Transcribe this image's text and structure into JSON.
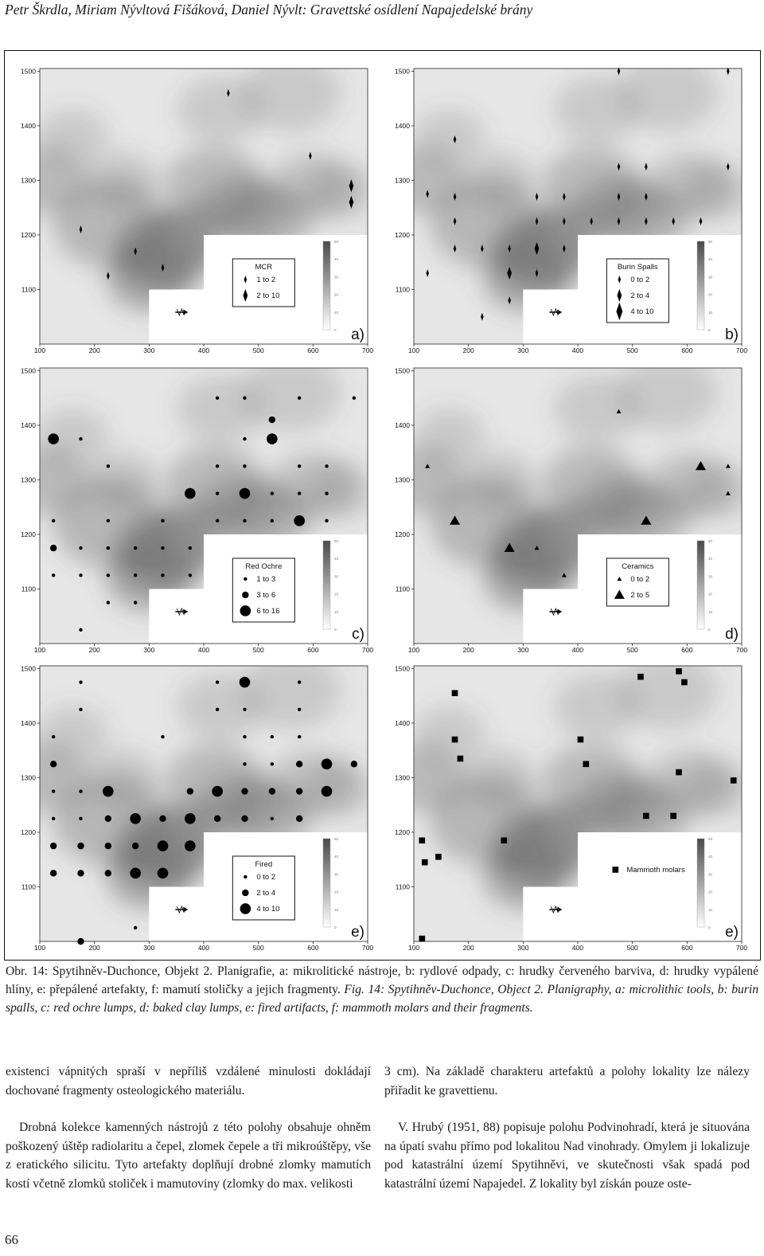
{
  "header": "Petr Škrdla, Miriam Nývltová Fišáková, Daniel Nývlt: Gravettské osídlení Napajedelské brány",
  "panels": [
    {
      "letter": "a)",
      "legend_title": "MCR",
      "marker": "diamond",
      "legend": [
        {
          "label": "1  to  2",
          "size": 1
        },
        {
          "label": "2  to  10",
          "size": 2
        }
      ],
      "points": [
        [
          175,
          1210,
          1
        ],
        [
          275,
          1170,
          1
        ],
        [
          325,
          1140,
          1
        ],
        [
          225,
          1125,
          1
        ],
        [
          445,
          1460,
          1
        ],
        [
          595,
          1345,
          1
        ],
        [
          670,
          1290,
          2
        ],
        [
          670,
          1260,
          2
        ]
      ]
    },
    {
      "letter": "b)",
      "legend_title": "Burin Spalls",
      "marker": "diamond",
      "legend": [
        {
          "label": "0  to  2",
          "size": 1
        },
        {
          "label": "2  to  4",
          "size": 2
        },
        {
          "label": "4  to  10",
          "size": 3
        }
      ],
      "points": [
        [
          125,
          1130,
          1
        ],
        [
          175,
          1175,
          1
        ],
        [
          175,
          1225,
          1
        ],
        [
          175,
          1270,
          1
        ],
        [
          225,
          1175,
          1
        ],
        [
          275,
          1130,
          2
        ],
        [
          275,
          1080,
          1
        ],
        [
          275,
          1175,
          1
        ],
        [
          325,
          1270,
          1
        ],
        [
          325,
          1225,
          1
        ],
        [
          325,
          1175,
          2
        ],
        [
          325,
          1130,
          1
        ],
        [
          375,
          1175,
          1
        ],
        [
          375,
          1225,
          1
        ],
        [
          375,
          1270,
          1
        ],
        [
          425,
          1225,
          1
        ],
        [
          475,
          1225,
          1
        ],
        [
          475,
          1270,
          1
        ],
        [
          475,
          1325,
          1
        ],
        [
          525,
          1325,
          1
        ],
        [
          525,
          1270,
          1
        ],
        [
          525,
          1225,
          1
        ],
        [
          575,
          1225,
          1
        ],
        [
          625,
          1225,
          1
        ],
        [
          675,
          1325,
          1
        ],
        [
          475,
          1500,
          1
        ],
        [
          675,
          1500,
          1
        ],
        [
          175,
          1375,
          1
        ],
        [
          125,
          1275,
          1
        ],
        [
          225,
          1050,
          1
        ]
      ]
    },
    {
      "letter": "c)",
      "legend_title": "Red Ochre",
      "marker": "circle",
      "legend": [
        {
          "label": "1  to  3",
          "size": 1
        },
        {
          "label": "3  to  6",
          "size": 2
        },
        {
          "label": "6  to  16",
          "size": 3
        }
      ],
      "points": [
        [
          125,
          1375,
          3
        ],
        [
          175,
          1375,
          1
        ],
        [
          225,
          1325,
          1
        ],
        [
          125,
          1225,
          1
        ],
        [
          225,
          1225,
          1
        ],
        [
          125,
          1175,
          2
        ],
        [
          175,
          1175,
          1
        ],
        [
          225,
          1175,
          1
        ],
        [
          125,
          1125,
          1
        ],
        [
          175,
          1125,
          1
        ],
        [
          225,
          1125,
          1
        ],
        [
          275,
          1175,
          1
        ],
        [
          275,
          1125,
          1
        ],
        [
          325,
          1175,
          1
        ],
        [
          325,
          1225,
          1
        ],
        [
          325,
          1125,
          1
        ],
        [
          375,
          1175,
          1
        ],
        [
          375,
          1125,
          1
        ],
        [
          275,
          1075,
          1
        ],
        [
          225,
          1075,
          1
        ],
        [
          175,
          1025,
          1
        ],
        [
          375,
          1275,
          3
        ],
        [
          425,
          1275,
          1
        ],
        [
          475,
          1275,
          3
        ],
        [
          525,
          1275,
          1
        ],
        [
          575,
          1275,
          1
        ],
        [
          625,
          1275,
          1
        ],
        [
          425,
          1225,
          1
        ],
        [
          475,
          1225,
          1
        ],
        [
          525,
          1225,
          1
        ],
        [
          575,
          1225,
          3
        ],
        [
          625,
          1225,
          1
        ],
        [
          425,
          1325,
          1
        ],
        [
          475,
          1325,
          1
        ],
        [
          575,
          1325,
          1
        ],
        [
          625,
          1325,
          1
        ],
        [
          475,
          1375,
          1
        ],
        [
          525,
          1375,
          3
        ],
        [
          525,
          1410,
          2
        ],
        [
          425,
          1450,
          1
        ],
        [
          475,
          1450,
          1
        ],
        [
          575,
          1450,
          1
        ],
        [
          675,
          1450,
          1
        ]
      ]
    },
    {
      "letter": "d)",
      "legend_title": "Ceramics",
      "marker": "triangle",
      "legend": [
        {
          "label": "0  to  2",
          "size": 1
        },
        {
          "label": "2  to  5",
          "size": 2
        }
      ],
      "points": [
        [
          125,
          1325,
          1
        ],
        [
          175,
          1225,
          2
        ],
        [
          275,
          1175,
          2
        ],
        [
          325,
          1175,
          1
        ],
        [
          375,
          1125,
          1
        ],
        [
          475,
          1425,
          1
        ],
        [
          525,
          1225,
          2
        ],
        [
          625,
          1325,
          2
        ],
        [
          675,
          1325,
          1
        ],
        [
          675,
          1275,
          1
        ]
      ]
    },
    {
      "letter": "e)",
      "legend_title": "Fired",
      "marker": "circle",
      "legend": [
        {
          "label": "0  to  2",
          "size": 1
        },
        {
          "label": "2  to  4",
          "size": 2
        },
        {
          "label": "4  to  10",
          "size": 3
        }
      ],
      "points": [
        [
          175,
          1475,
          1
        ],
        [
          175,
          1425,
          1
        ],
        [
          125,
          1375,
          1
        ],
        [
          125,
          1325,
          2
        ],
        [
          125,
          1275,
          1
        ],
        [
          175,
          1275,
          1
        ],
        [
          125,
          1225,
          1
        ],
        [
          175,
          1225,
          1
        ],
        [
          125,
          1175,
          2
        ],
        [
          175,
          1175,
          2
        ],
        [
          225,
          1175,
          2
        ],
        [
          275,
          1175,
          2
        ],
        [
          325,
          1175,
          3
        ],
        [
          375,
          1175,
          3
        ],
        [
          125,
          1125,
          2
        ],
        [
          175,
          1125,
          2
        ],
        [
          225,
          1125,
          2
        ],
        [
          275,
          1125,
          3
        ],
        [
          325,
          1125,
          3
        ],
        [
          225,
          1225,
          2
        ],
        [
          275,
          1225,
          3
        ],
        [
          325,
          1225,
          2
        ],
        [
          375,
          1225,
          3
        ],
        [
          225,
          1275,
          3
        ],
        [
          325,
          1375,
          1
        ],
        [
          375,
          1275,
          2
        ],
        [
          425,
          1275,
          3
        ],
        [
          475,
          1275,
          2
        ],
        [
          525,
          1275,
          2
        ],
        [
          575,
          1275,
          2
        ],
        [
          625,
          1275,
          3
        ],
        [
          425,
          1225,
          2
        ],
        [
          475,
          1225,
          2
        ],
        [
          525,
          1225,
          1
        ],
        [
          575,
          1225,
          2
        ],
        [
          475,
          1325,
          1
        ],
        [
          525,
          1325,
          1
        ],
        [
          575,
          1325,
          2
        ],
        [
          625,
          1325,
          3
        ],
        [
          675,
          1325,
          2
        ],
        [
          425,
          1425,
          1
        ],
        [
          475,
          1425,
          1
        ],
        [
          575,
          1425,
          1
        ],
        [
          425,
          1475,
          1
        ],
        [
          475,
          1475,
          3
        ],
        [
          575,
          1475,
          1
        ],
        [
          475,
          1375,
          1
        ],
        [
          525,
          1375,
          1
        ],
        [
          575,
          1375,
          1
        ],
        [
          275,
          1025,
          1
        ],
        [
          175,
          1000,
          2
        ]
      ]
    },
    {
      "letter": "e)",
      "legend_title": "",
      "marker": "square",
      "legend": [
        {
          "label": "Mammoth molars",
          "size": 1
        }
      ],
      "points": [
        [
          175,
          1455,
          1
        ],
        [
          585,
          1495,
          1
        ],
        [
          515,
          1485,
          1
        ],
        [
          595,
          1475,
          1
        ],
        [
          175,
          1370,
          1
        ],
        [
          185,
          1335,
          1
        ],
        [
          405,
          1370,
          1
        ],
        [
          415,
          1325,
          1
        ],
        [
          585,
          1310,
          1
        ],
        [
          685,
          1295,
          1
        ],
        [
          525,
          1230,
          1
        ],
        [
          575,
          1230,
          1
        ],
        [
          115,
          1185,
          1
        ],
        [
          265,
          1185,
          1
        ],
        [
          120,
          1145,
          1
        ],
        [
          145,
          1155,
          1
        ],
        [
          115,
          1005,
          1
        ]
      ]
    }
  ],
  "axis": {
    "x_ticks": [
      "100",
      "200",
      "300",
      "400",
      "500",
      "600",
      "700"
    ],
    "y_ticks": [
      "1500",
      "1400",
      "1300",
      "1200",
      "1100"
    ],
    "colorbar_ticks": [
      "50",
      "40",
      "30",
      "20",
      "10",
      "0"
    ]
  },
  "caption": {
    "czech": "Obr. 14: Spytihněv-Duchonce, Objekt 2. Planigrafie, a: mikrolitické nástroje, b: rydlové odpady, c: hrudky červeného barviva, d: hrudky vypálené hlíny, e: přepálené artefakty, f: mamutí stoličky a jejich fragmenty.",
    "english": "Fig. 14: Spytihněv-Duchonce, Object 2. Planigraphy, a: microlithic tools, b: burin spalls, c: red ochre lumps, d: baked clay lumps, e: fired artifacts, f: mammoth molars and their fragments."
  },
  "body": {
    "left": [
      "existenci vápnitých spraší v nepříliš vzdálené minulosti dokládají dochované fragmenty osteologického materiálu.",
      "Drobná kolekce kamenných nástrojů z této polohy obsahuje ohněm poškozený úštěp radiolaritu a čepel, zlomek čepele a tři mikroúštěpy, vše z eratického silicitu. Tyto artefakty doplňují drobné zlomky mamutích kostí včetně zlomků stoliček i mamutoviny (zlomky do max. velikosti"
    ],
    "right": [
      "3 cm). Na základě charakteru artefaktů a polohy lokality lze nálezy přiřadit ke gravettienu.",
      "V. Hrubý (1951, 88) popisuje polohu Podvinohradí, která je situována na úpatí svahu přímo pod lokalitou Nad vinohrady. Omylem ji lokalizuje pod katastrální území Spytihněvi, ve skutečnosti však spadá pod katastrální území Napajedel. Z lokality byl získán pouze oste-"
    ]
  },
  "page_number": "66"
}
